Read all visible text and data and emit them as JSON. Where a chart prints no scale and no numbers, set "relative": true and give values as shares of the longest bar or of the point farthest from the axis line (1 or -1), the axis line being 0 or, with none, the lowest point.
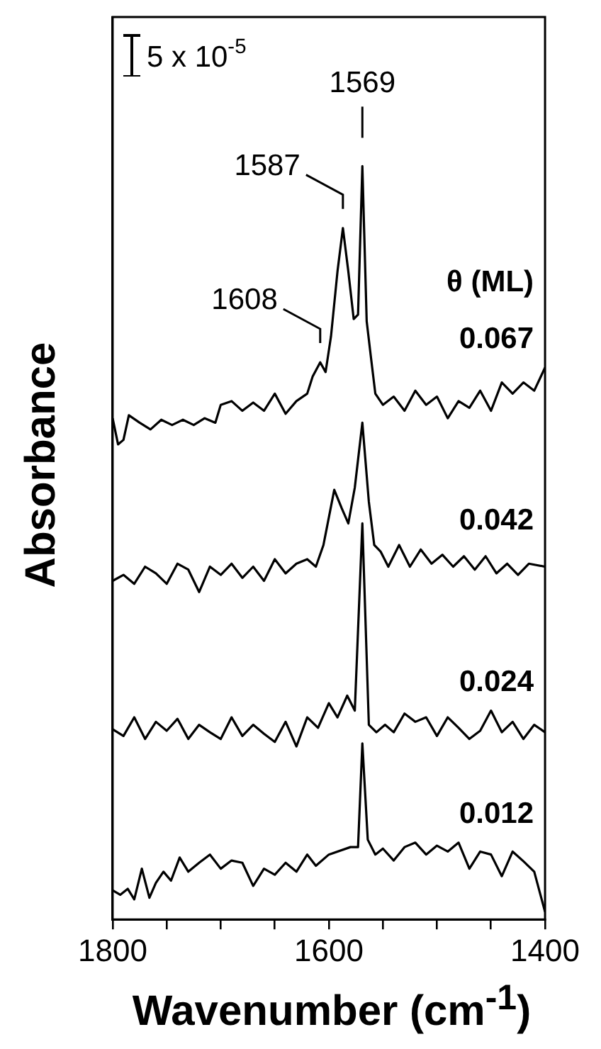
{
  "chart_data": {
    "type": "line",
    "relative": true,
    "xlabel": "Wavenumber (cm$^{-1}$)",
    "ylabel": "Absorbance",
    "legend_title": "θ (ML)",
    "tick_labels": "x",
    "xlim": [
      1800,
      1400
    ],
    "xticks": [
      1800,
      {
        "value": 1750,
        "label": null
      },
      {
        "value": 1700,
        "label": null
      },
      {
        "value": 1650,
        "label": null
      },
      1600,
      {
        "value": 1550,
        "label": null
      },
      {
        "value": 1500,
        "label": null
      },
      {
        "value": 1450,
        "label": null
      },
      1400
    ],
    "annotations": [
      "5 x 10$^{-5}$",
      {
        "text": "1608",
        "x": 1608,
        "y": 0.74
      },
      {
        "text": "1587",
        "x": 1587,
        "y": 0.92
      },
      {
        "text": "1569",
        "x": 1569,
        "y": 1.0
      }
    ],
    "series": [
      {
        "name": "0.067",
        "color": "#000000",
        "x": [
          1800,
          1795,
          1790,
          1785,
          1775,
          1765,
          1755,
          1745,
          1735,
          1725,
          1715,
          1705,
          1700,
          1690,
          1680,
          1670,
          1660,
          1650,
          1640,
          1630,
          1620,
          1615,
          1608,
          1603,
          1598,
          1592,
          1587,
          1582,
          1577,
          1573,
          1569,
          1565,
          1561,
          1557,
          1550,
          1540,
          1530,
          1520,
          1510,
          1500,
          1490,
          1480,
          1470,
          1460,
          1450,
          1440,
          1430,
          1420,
          1410,
          1400
        ],
        "values": [
          0.662,
          0.627,
          0.633,
          0.666,
          0.656,
          0.647,
          0.66,
          0.653,
          0.66,
          0.653,
          0.662,
          0.656,
          0.68,
          0.685,
          0.672,
          0.683,
          0.672,
          0.695,
          0.668,
          0.685,
          0.695,
          0.718,
          0.737,
          0.724,
          0.772,
          0.859,
          0.917,
          0.859,
          0.795,
          0.801,
          1.0,
          0.792,
          0.743,
          0.695,
          0.68,
          0.691,
          0.672,
          0.699,
          0.68,
          0.691,
          0.662,
          0.685,
          0.676,
          0.699,
          0.672,
          0.71,
          0.695,
          0.71,
          0.699,
          0.73
        ]
      },
      {
        "name": "0.042",
        "color": "#000000",
        "x": [
          1800,
          1790,
          1780,
          1770,
          1760,
          1750,
          1740,
          1730,
          1720,
          1710,
          1700,
          1690,
          1680,
          1670,
          1660,
          1650,
          1640,
          1630,
          1620,
          1612,
          1605,
          1595,
          1588,
          1582,
          1576,
          1569,
          1563,
          1558,
          1552,
          1545,
          1535,
          1525,
          1515,
          1505,
          1495,
          1485,
          1475,
          1465,
          1455,
          1445,
          1435,
          1425,
          1415,
          1400
        ],
        "values": [
          0.444,
          0.452,
          0.44,
          0.463,
          0.454,
          0.44,
          0.467,
          0.459,
          0.429,
          0.463,
          0.452,
          0.467,
          0.448,
          0.463,
          0.444,
          0.473,
          0.454,
          0.467,
          0.473,
          0.463,
          0.492,
          0.566,
          0.541,
          0.521,
          0.569,
          0.656,
          0.55,
          0.492,
          0.483,
          0.463,
          0.492,
          0.463,
          0.486,
          0.467,
          0.479,
          0.463,
          0.477,
          0.459,
          0.477,
          0.454,
          0.467,
          0.452,
          0.467,
          0.463
        ]
      },
      {
        "name": "0.024",
        "color": "#000000",
        "x": [
          1800,
          1790,
          1780,
          1770,
          1760,
          1750,
          1740,
          1730,
          1720,
          1710,
          1700,
          1690,
          1680,
          1670,
          1660,
          1650,
          1640,
          1630,
          1620,
          1610,
          1600,
          1592,
          1583,
          1576,
          1569,
          1563,
          1556,
          1548,
          1540,
          1530,
          1520,
          1510,
          1500,
          1490,
          1480,
          1470,
          1460,
          1450,
          1440,
          1430,
          1420,
          1410,
          1400
        ],
        "values": [
          0.245,
          0.236,
          0.261,
          0.232,
          0.255,
          0.243,
          0.259,
          0.232,
          0.251,
          0.241,
          0.232,
          0.261,
          0.236,
          0.251,
          0.239,
          0.228,
          0.255,
          0.222,
          0.261,
          0.247,
          0.28,
          0.261,
          0.29,
          0.27,
          0.521,
          0.251,
          0.241,
          0.251,
          0.241,
          0.266,
          0.255,
          0.261,
          0.236,
          0.261,
          0.247,
          0.232,
          0.243,
          0.27,
          0.241,
          0.255,
          0.232,
          0.251,
          0.241
        ]
      },
      {
        "name": "0.012",
        "color": "#000000",
        "x": [
          1800,
          1793,
          1786,
          1780,
          1773,
          1766,
          1760,
          1753,
          1746,
          1738,
          1730,
          1720,
          1710,
          1700,
          1690,
          1680,
          1670,
          1660,
          1650,
          1640,
          1630,
          1620,
          1612,
          1600,
          1580,
          1573,
          1569,
          1564,
          1557,
          1550,
          1540,
          1530,
          1520,
          1510,
          1500,
          1490,
          1480,
          1470,
          1460,
          1450,
          1440,
          1430,
          1420,
          1410,
          1400
        ],
        "values": [
          0.029,
          0.023,
          0.031,
          0.017,
          0.058,
          0.019,
          0.039,
          0.054,
          0.042,
          0.073,
          0.054,
          0.066,
          0.077,
          0.058,
          0.069,
          0.066,
          0.035,
          0.058,
          0.05,
          0.066,
          0.054,
          0.077,
          0.062,
          0.077,
          0.087,
          0.087,
          0.226,
          0.097,
          0.077,
          0.085,
          0.069,
          0.087,
          0.093,
          0.077,
          0.089,
          0.081,
          0.093,
          0.058,
          0.081,
          0.077,
          0.048,
          0.081,
          0.068,
          0.054,
          0.0
        ]
      }
    ]
  }
}
